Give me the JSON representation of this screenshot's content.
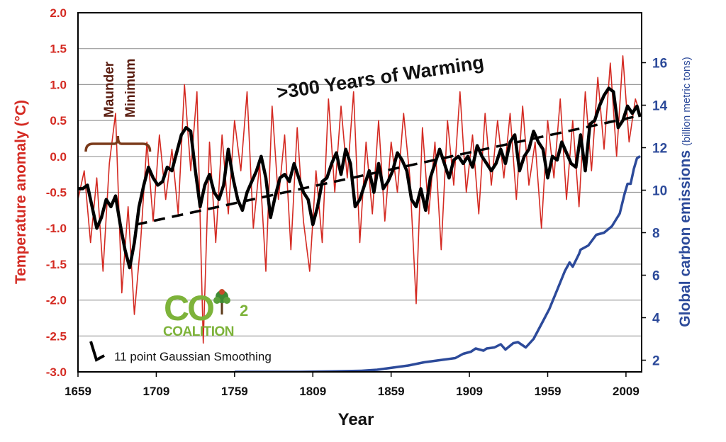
{
  "chart_data": {
    "type": "line",
    "xlabel": "Year",
    "ylabel_left": "Temperature anomaly (°C)",
    "ylabel_right": "Global carbon emissions (billion metric tons)",
    "x_ticks": [
      "1659",
      "1709",
      "1759",
      "1809",
      "1859",
      "1909",
      "1959",
      "2009"
    ],
    "x_range": [
      1659,
      2019
    ],
    "y_left_ticks": [
      "2.0",
      "1.5",
      "1.0",
      "0.5",
      "0.0",
      "-0.5",
      "-1.0",
      "-1.5",
      "-2.0",
      "-2.5",
      "-3.0"
    ],
    "y_left_range": [
      -3.0,
      2.0
    ],
    "y_right_ticks": [
      "2",
      "4",
      "6",
      "8",
      "10",
      "12",
      "14",
      "16"
    ],
    "y_right_range": [
      1.45,
      18.35
    ],
    "grid": true,
    "colors": {
      "temperature": "#d42a22",
      "smoothed": "#000000",
      "emissions": "#2c4a9a",
      "left_axis": "#d42a22",
      "right_axis": "#2c4a9a",
      "grid": "#9a9a9a"
    },
    "annotations": {
      "trend_title": ">300 Years of Warming",
      "maunder_line1": "Maunder",
      "maunder_line2": "Minimum",
      "legend_text": "11 point Gaussian Smoothing",
      "logo_co": "CO",
      "logo_sub": "2",
      "logo_word": "COALITION"
    },
    "trend_line": {
      "x": [
        1696,
        2014
      ],
      "y": [
        -0.95,
        0.55
      ]
    },
    "maunder_bracket": {
      "x": [
        1664,
        1705
      ]
    },
    "series": [
      {
        "style": "raw",
        "x": [
          1659,
          1663,
          1667,
          1671,
          1675,
          1679,
          1683,
          1687,
          1691,
          1695,
          1699,
          1703,
          1707,
          1711,
          1715,
          1719,
          1723,
          1727,
          1731,
          1735,
          1739,
          1743,
          1747,
          1751,
          1755,
          1759,
          1763,
          1767,
          1771,
          1775,
          1779,
          1783,
          1787,
          1791,
          1795,
          1799,
          1803,
          1807,
          1811,
          1815,
          1819,
          1823,
          1827,
          1831,
          1835,
          1839,
          1843,
          1847,
          1851,
          1855,
          1859,
          1863,
          1867,
          1871,
          1875,
          1879,
          1883,
          1887,
          1891,
          1895,
          1899,
          1903,
          1907,
          1911,
          1915,
          1919,
          1923,
          1927,
          1931,
          1935,
          1939,
          1943,
          1947,
          1951,
          1955,
          1959,
          1963,
          1967,
          1971,
          1975,
          1979,
          1983,
          1987,
          1991,
          1995,
          1999,
          2003,
          2007,
          2011,
          2015,
          2018
        ],
        "y": [
          -0.6,
          -0.2,
          -1.2,
          -0.3,
          -1.6,
          -0.1,
          0.6,
          -1.9,
          -0.7,
          -2.2,
          -1.2,
          0.2,
          -0.9,
          0.3,
          -0.6,
          0.1,
          -0.8,
          1.0,
          -0.2,
          0.9,
          -2.6,
          0.2,
          -1.2,
          0.3,
          -0.8,
          0.5,
          -0.2,
          0.9,
          -1.0,
          -0.1,
          -1.6,
          0.7,
          -0.6,
          0.3,
          -1.3,
          0.4,
          -0.9,
          -1.6,
          -0.2,
          -1.2,
          0.8,
          -0.5,
          0.7,
          -0.3,
          0.9,
          -1.2,
          0.2,
          -0.8,
          0.5,
          -0.9,
          0.2,
          -0.5,
          0.6,
          -0.3,
          -2.05,
          0.4,
          -0.8,
          0.2,
          -1.3,
          0.5,
          -0.4,
          0.9,
          -0.5,
          0.3,
          -0.8,
          0.6,
          -0.4,
          0.5,
          -0.3,
          0.6,
          -0.6,
          0.7,
          -0.4,
          0.2,
          -1.0,
          0.5,
          -0.3,
          0.8,
          -0.6,
          0.5,
          -0.7,
          0.9,
          -0.2,
          1.1,
          0.1,
          1.3,
          0.0,
          1.4,
          0.2,
          0.8,
          0.6
        ]
      },
      {
        "style": "smoothed",
        "x": [
          1659,
          1662,
          1665,
          1668,
          1671,
          1674,
          1677,
          1680,
          1683,
          1686,
          1689,
          1692,
          1695,
          1698,
          1701,
          1704,
          1707,
          1710,
          1713,
          1716,
          1719,
          1722,
          1725,
          1728,
          1731,
          1734,
          1737,
          1740,
          1743,
          1746,
          1749,
          1752,
          1755,
          1758,
          1761,
          1764,
          1767,
          1770,
          1773,
          1776,
          1779,
          1782,
          1785,
          1788,
          1791,
          1794,
          1797,
          1800,
          1803,
          1806,
          1809,
          1812,
          1815,
          1818,
          1821,
          1824,
          1827,
          1830,
          1833,
          1836,
          1839,
          1842,
          1845,
          1848,
          1851,
          1854,
          1857,
          1860,
          1863,
          1866,
          1869,
          1872,
          1875,
          1878,
          1881,
          1884,
          1887,
          1890,
          1893,
          1896,
          1899,
          1902,
          1905,
          1908,
          1911,
          1914,
          1917,
          1920,
          1923,
          1926,
          1929,
          1932,
          1935,
          1938,
          1941,
          1944,
          1947,
          1950,
          1953,
          1956,
          1959,
          1962,
          1965,
          1968,
          1971,
          1974,
          1977,
          1980,
          1983,
          1986,
          1989,
          1992,
          1995,
          1998,
          2001,
          2004,
          2007,
          2010,
          2013,
          2016,
          2018
        ],
        "y": [
          -0.45,
          -0.45,
          -0.4,
          -0.7,
          -1.0,
          -0.85,
          -0.6,
          -0.7,
          -0.55,
          -0.95,
          -1.3,
          -1.55,
          -1.2,
          -0.7,
          -0.4,
          -0.15,
          -0.3,
          -0.4,
          -0.35,
          -0.15,
          -0.2,
          0.05,
          0.3,
          0.4,
          0.35,
          -0.2,
          -0.7,
          -0.4,
          -0.25,
          -0.5,
          -0.6,
          -0.4,
          0.1,
          -0.3,
          -0.6,
          -0.75,
          -0.5,
          -0.35,
          -0.2,
          0.0,
          -0.3,
          -0.85,
          -0.55,
          -0.3,
          -0.25,
          -0.35,
          -0.1,
          -0.3,
          -0.5,
          -0.6,
          -0.95,
          -0.7,
          -0.35,
          -0.3,
          -0.1,
          0.05,
          -0.25,
          0.1,
          -0.1,
          -0.7,
          -0.6,
          -0.4,
          -0.2,
          -0.5,
          -0.1,
          -0.45,
          -0.35,
          -0.2,
          0.05,
          -0.05,
          -0.2,
          -0.6,
          -0.7,
          -0.45,
          -0.75,
          -0.3,
          -0.1,
          0.1,
          -0.1,
          -0.3,
          -0.05,
          0.0,
          -0.1,
          0.0,
          -0.15,
          0.15,
          0.0,
          -0.1,
          -0.2,
          -0.1,
          0.1,
          -0.1,
          0.2,
          0.3,
          -0.2,
          0.0,
          0.1,
          0.35,
          0.2,
          0.1,
          -0.3,
          0.0,
          -0.05,
          0.2,
          0.05,
          -0.1,
          -0.15,
          0.3,
          -0.2,
          0.45,
          0.5,
          0.7,
          0.85,
          0.95,
          0.9,
          0.4,
          0.5,
          0.7,
          0.6,
          0.7,
          0.55
        ]
      },
      {
        "style": "emissions",
        "x": [
          1759,
          1780,
          1800,
          1820,
          1840,
          1850,
          1860,
          1870,
          1880,
          1890,
          1900,
          1905,
          1910,
          1913,
          1918,
          1920,
          1925,
          1929,
          1932,
          1937,
          1940,
          1945,
          1950,
          1955,
          1960,
          1965,
          1970,
          1973,
          1975,
          1979,
          1980,
          1985,
          1990,
          1995,
          2000,
          2005,
          2008,
          2010,
          2012,
          2014,
          2016,
          2018
        ],
        "y": [
          1.45,
          1.45,
          1.45,
          1.47,
          1.5,
          1.55,
          1.65,
          1.75,
          1.9,
          2.0,
          2.1,
          2.3,
          2.4,
          2.55,
          2.45,
          2.55,
          2.6,
          2.75,
          2.5,
          2.8,
          2.85,
          2.6,
          3.0,
          3.7,
          4.4,
          5.3,
          6.2,
          6.6,
          6.4,
          7.0,
          7.2,
          7.4,
          7.9,
          8.0,
          8.3,
          8.9,
          9.8,
          10.3,
          10.3,
          11.0,
          11.5,
          11.6
        ]
      }
    ]
  }
}
